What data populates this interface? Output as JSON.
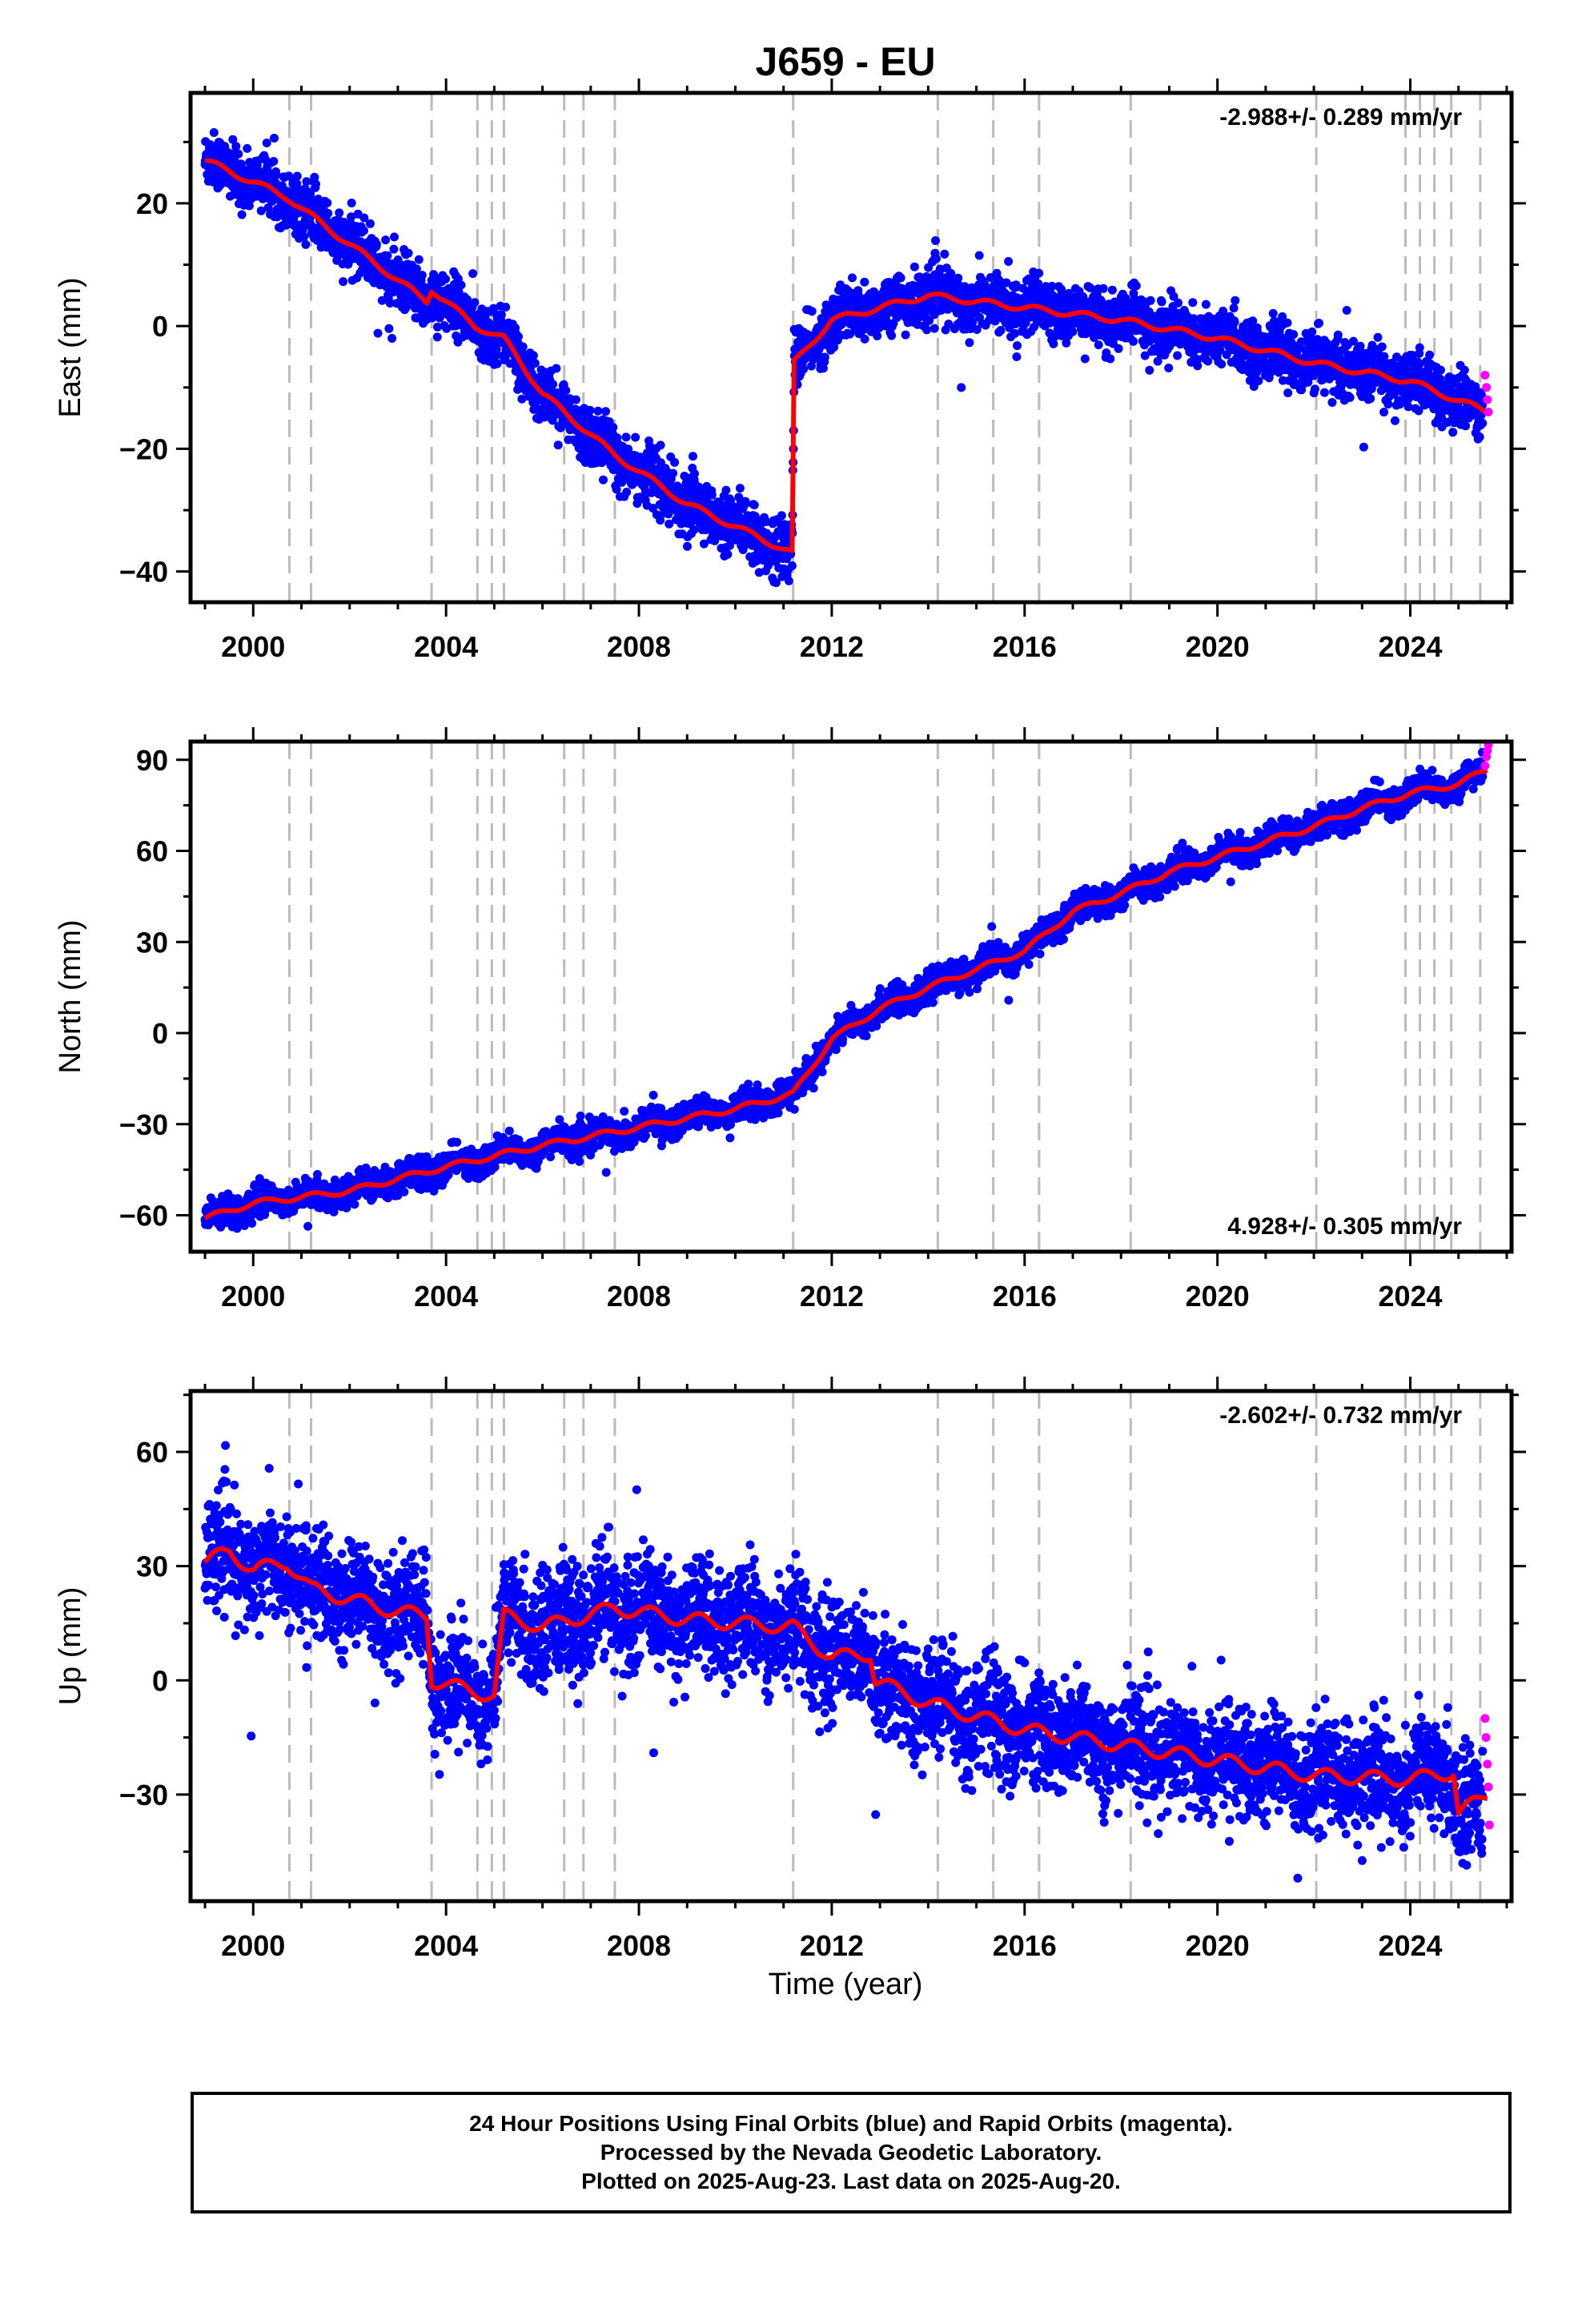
{
  "chart_data": {
    "type": "scatter",
    "title": "J659 - EU",
    "xlabel": "Time (year)",
    "xlim": [
      1998.7,
      2026.1
    ],
    "xticks": [
      2000,
      2004,
      2008,
      2012,
      2016,
      2020,
      2024
    ],
    "grid": false,
    "colors": {
      "final": "#0000ff",
      "rapid": "#ff00ff",
      "model": "#ff0000",
      "event_lines": "#bbbbbb"
    },
    "legend_text": [
      "24 Hour Positions Using Final Orbits (blue) and Rapid Orbits (magenta).",
      "Processed by the Nevada Geodetic Laboratory.",
      "Plotted on 2025-Aug-23. Last data on 2025-Aug-20."
    ],
    "event_lines_x": [
      2000.75,
      2001.2,
      2003.7,
      2004.65,
      2004.95,
      2005.2,
      2006.45,
      2006.85,
      2007.5,
      2011.2,
      2014.2,
      2015.35,
      2016.3,
      2018.2,
      2022.05,
      2023.9,
      2024.2,
      2024.5,
      2024.85,
      2025.45
    ],
    "panels": [
      {
        "component": "East",
        "ylabel": "East (mm)",
        "ylim": [
          -45,
          38
        ],
        "yticks": [
          -40,
          -20,
          0,
          20
        ],
        "rate_label": "-2.988+/- 0.289 mm/yr",
        "rate_position": "top-right",
        "trend": [
          [
            1999.0,
            27
          ],
          [
            2000.7,
            21
          ],
          [
            2001.2,
            18
          ],
          [
            2003.6,
            4
          ],
          [
            2003.7,
            6
          ],
          [
            2004.6,
            0
          ],
          [
            2005.2,
            -2
          ],
          [
            2006.0,
            -11
          ],
          [
            2007.5,
            -21
          ],
          [
            2009.0,
            -29
          ],
          [
            2011.18,
            -37
          ],
          [
            2011.22,
            -6
          ],
          [
            2012.0,
            1
          ],
          [
            2014.0,
            5
          ],
          [
            2016.0,
            3
          ],
          [
            2018.0,
            1
          ],
          [
            2020.0,
            -2
          ],
          [
            2022.0,
            -6
          ],
          [
            2024.0,
            -9
          ],
          [
            2025.6,
            -14
          ]
        ],
        "rapid_points": [
          [
            2025.55,
            -8
          ],
          [
            2025.58,
            -10
          ],
          [
            2025.6,
            -12
          ],
          [
            2025.62,
            -14
          ]
        ]
      },
      {
        "component": "North",
        "ylabel": "North (mm)",
        "ylim": [
          -72,
          96
        ],
        "yticks": [
          -60,
          -30,
          0,
          30,
          60,
          90
        ],
        "rate_label": "4.928+/- 0.305 mm/yr",
        "rate_position": "bottom-right",
        "trend": [
          [
            1999.0,
            -61
          ],
          [
            2000.0,
            -56
          ],
          [
            2002.0,
            -52
          ],
          [
            2004.0,
            -44
          ],
          [
            2006.0,
            -37
          ],
          [
            2008.0,
            -31
          ],
          [
            2010.0,
            -25
          ],
          [
            2011.2,
            -20
          ],
          [
            2012.0,
            -2
          ],
          [
            2013.0,
            8
          ],
          [
            2014.0,
            15
          ],
          [
            2015.0,
            21
          ],
          [
            2016.0,
            27
          ],
          [
            2017.0,
            40
          ],
          [
            2018.0,
            46
          ],
          [
            2019.0,
            53
          ],
          [
            2020.0,
            58
          ],
          [
            2021.0,
            63
          ],
          [
            2022.0,
            68
          ],
          [
            2023.0,
            74
          ],
          [
            2024.0,
            79
          ],
          [
            2025.0,
            82
          ],
          [
            2025.6,
            87
          ]
        ],
        "rapid_points": [
          [
            2025.55,
            88
          ],
          [
            2025.58,
            91
          ],
          [
            2025.6,
            93
          ],
          [
            2025.62,
            95
          ]
        ]
      },
      {
        "component": "Up",
        "ylabel": "Up (mm)",
        "ylim": [
          -58,
          76
        ],
        "yticks": [
          -30,
          0,
          30,
          60
        ],
        "rate_label": "-2.602+/- 0.732 mm/yr",
        "rate_position": "top-right",
        "trend": [
          [
            1999.0,
            31
          ],
          [
            1999.5,
            34
          ],
          [
            2000.0,
            29
          ],
          [
            2000.7,
            31
          ],
          [
            2001.2,
            24
          ],
          [
            2003.0,
            18
          ],
          [
            2003.6,
            17
          ],
          [
            2003.7,
            0
          ],
          [
            2004.6,
            -3
          ],
          [
            2005.0,
            -4
          ],
          [
            2005.2,
            17
          ],
          [
            2006.0,
            14
          ],
          [
            2007.5,
            19
          ],
          [
            2009.0,
            16
          ],
          [
            2011.2,
            14
          ],
          [
            2012.0,
            6
          ],
          [
            2012.8,
            7
          ],
          [
            2012.9,
            0
          ],
          [
            2014.0,
            -6
          ],
          [
            2016.0,
            -13
          ],
          [
            2018.0,
            -17
          ],
          [
            2020.0,
            -21
          ],
          [
            2022.0,
            -25
          ],
          [
            2024.0,
            -26
          ],
          [
            2024.9,
            -24
          ],
          [
            2025.0,
            -35
          ],
          [
            2025.6,
            -30
          ]
        ],
        "rapid_points": [
          [
            2025.55,
            -10
          ],
          [
            2025.57,
            -15
          ],
          [
            2025.6,
            -22
          ],
          [
            2025.62,
            -28
          ],
          [
            2025.64,
            -38
          ]
        ]
      }
    ]
  }
}
